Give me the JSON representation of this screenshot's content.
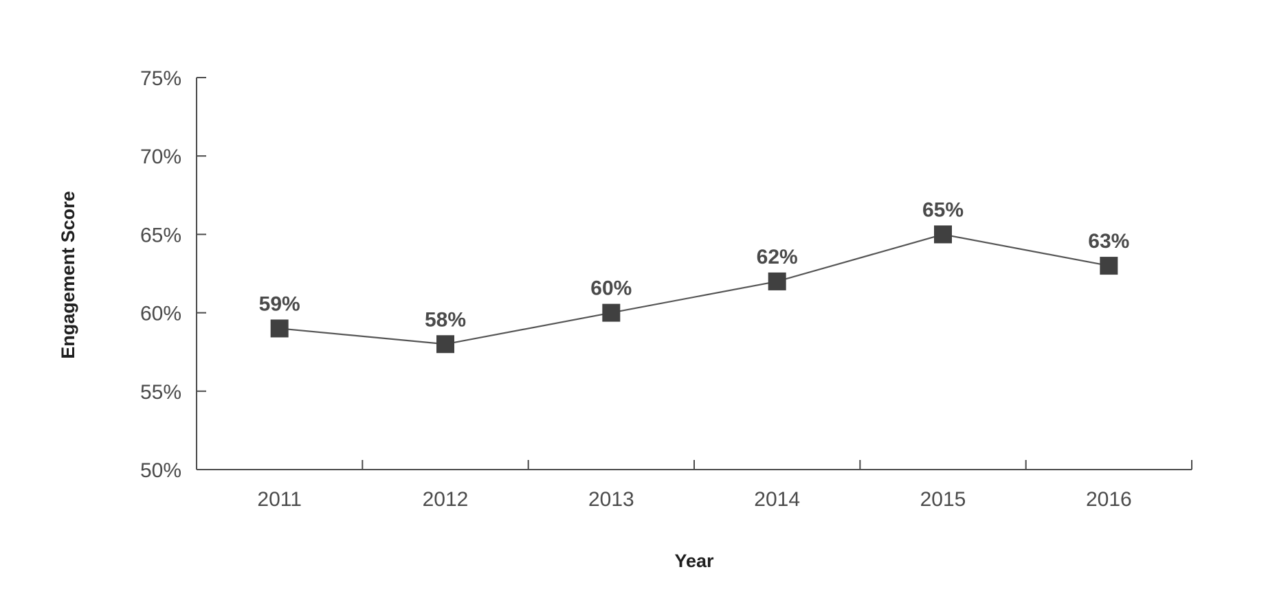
{
  "chart_data": {
    "type": "line",
    "xlabel": "Year",
    "ylabel": "Engagement Score",
    "categories": [
      "2011",
      "2012",
      "2013",
      "2014",
      "2015",
      "2016"
    ],
    "series": [
      {
        "values": [
          59,
          58,
          60,
          62,
          65,
          63
        ],
        "labels": [
          "59%",
          "58%",
          "60%",
          "62%",
          "65%",
          "63%"
        ],
        "color": "#404040",
        "marker": "square"
      }
    ],
    "ylim": [
      50,
      75
    ],
    "yticks": [
      50,
      55,
      60,
      65,
      70,
      75
    ],
    "ytick_labels": [
      "50%",
      "55%",
      "60%",
      "65%",
      "70%",
      "75%"
    ],
    "grid": false,
    "legend": "none"
  }
}
